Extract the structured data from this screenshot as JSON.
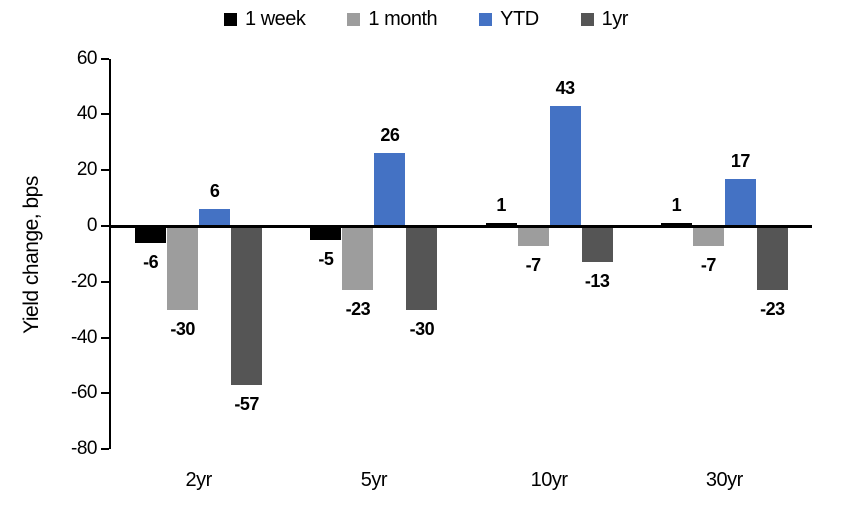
{
  "chart_data": {
    "type": "bar",
    "title": "",
    "ylabel": "Yield change, bps",
    "xlabel": "",
    "categories": [
      "2yr",
      "5yr",
      "10yr",
      "30yr"
    ],
    "series": [
      {
        "name": "1 week",
        "color": "#000000",
        "values": [
          -6,
          -5,
          1,
          1
        ]
      },
      {
        "name": "1 month",
        "color": "#9d9d9d",
        "values": [
          -30,
          -23,
          -7,
          -7
        ]
      },
      {
        "name": "YTD",
        "color": "#4472c4",
        "values": [
          6,
          26,
          43,
          17
        ]
      },
      {
        "name": "1yr",
        "color": "#555555",
        "values": [
          -57,
          -30,
          -13,
          -23
        ]
      }
    ],
    "ylim": [
      -80,
      60
    ],
    "yticks": [
      60,
      40,
      20,
      0,
      -20,
      -40,
      -60,
      -80
    ],
    "grid": false,
    "legend_position": "top",
    "data_labels": true,
    "axis_color": "#000000"
  }
}
